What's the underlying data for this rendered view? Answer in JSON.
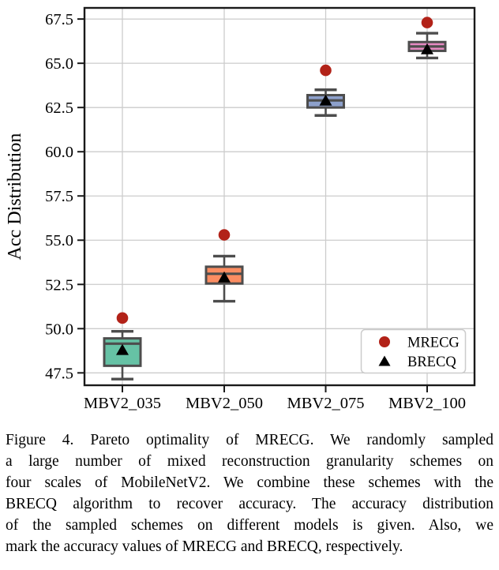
{
  "figure": {
    "caption_lines": [
      "Figure 4.  Pareto optimality of MRECG. We randomly sampled",
      "a large number of mixed reconstruction granularity schemes on",
      "four scales of MobileNetV2. We combine these schemes with the",
      "BRECQ algorithm to recover accuracy. The accuracy distribution",
      "of the sampled schemes on different models is given.  Also, we",
      "mark the accuracy values of MRECG and BRECQ, respectively."
    ]
  },
  "chart_data": {
    "type": "boxplot",
    "title": "",
    "xlabel": "",
    "ylabel": "Acc Distribution",
    "categories": [
      "MBV2_035",
      "MBV2_050",
      "MBV2_075",
      "MBV2_100"
    ],
    "yticks": [
      47.5,
      50.0,
      52.5,
      55.0,
      57.5,
      60.0,
      62.5,
      65.0,
      67.5
    ],
    "ylim": [
      46.8,
      68.13
    ],
    "grid": true,
    "box_edge_color": "#4d4d4d",
    "grid_color": "#cccccc",
    "frame_color": "#1a1a1a",
    "boxes": [
      {
        "category": "MBV2_035",
        "color": "#66c2a5",
        "whisker_low": 47.15,
        "q1": 47.9,
        "median": 49.15,
        "q3": 49.45,
        "whisker_high": 49.85
      },
      {
        "category": "MBV2_050",
        "color": "#fc8d62",
        "whisker_low": 51.55,
        "q1": 52.55,
        "median": 53.1,
        "q3": 53.5,
        "whisker_high": 54.1
      },
      {
        "category": "MBV2_075",
        "color": "#8da0cb",
        "whisker_low": 62.05,
        "q1": 62.5,
        "median": 62.9,
        "q3": 63.2,
        "whisker_high": 63.5
      },
      {
        "category": "MBV2_100",
        "color": "#e78ac3",
        "whisker_low": 65.3,
        "q1": 65.7,
        "median": 65.95,
        "q3": 66.2,
        "whisker_high": 66.7
      }
    ],
    "series": [
      {
        "name": "MRECG",
        "marker": "circle",
        "color": "#b22218",
        "values": [
          50.6,
          55.3,
          64.6,
          67.3
        ]
      },
      {
        "name": "BRECQ",
        "marker": "triangle",
        "color": "#000000",
        "values": [
          48.8,
          52.9,
          62.9,
          65.8
        ]
      }
    ],
    "legend": {
      "position": "lower right",
      "entries": [
        "MRECG",
        "BRECQ"
      ]
    }
  }
}
